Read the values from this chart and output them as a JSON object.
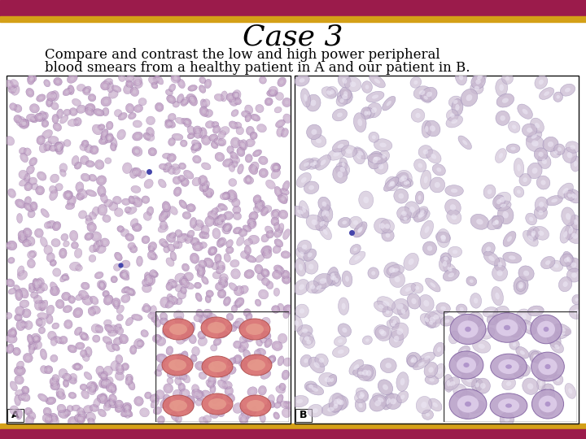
{
  "title": "Case 3",
  "subtitle_line1": "Compare and contrast the low and high power peripheral",
  "subtitle_line2": "blood smears from a healthy patient in A and our patient in B.",
  "header_crimson": "#9B1B4B",
  "header_gold": "#D4A017",
  "bg_color": "#FFFFFF",
  "label_A": "A",
  "label_B": "B",
  "title_fontsize": 26,
  "subtitle_fontsize": 12,
  "label_fontsize": 9,
  "panel_A_bg": "#D8C8D8",
  "panel_B_bg": "#EDE8F0",
  "inset_A_bg": "#F5CDB8",
  "inset_B_bg": "#E0D8EC",
  "cell_A_face": "#C0A0C4",
  "cell_A_edge": "#9878A8",
  "cell_B_face": "#C8B8D0",
  "cell_B_edge": "#A090B8",
  "rbc_A_face": "#D87070",
  "rbc_A_center": "#E8A090",
  "rbc_B_face": "#B8A0C8",
  "rbc_B_center": "#E0D0EC",
  "leuko_color": "#4444AA"
}
